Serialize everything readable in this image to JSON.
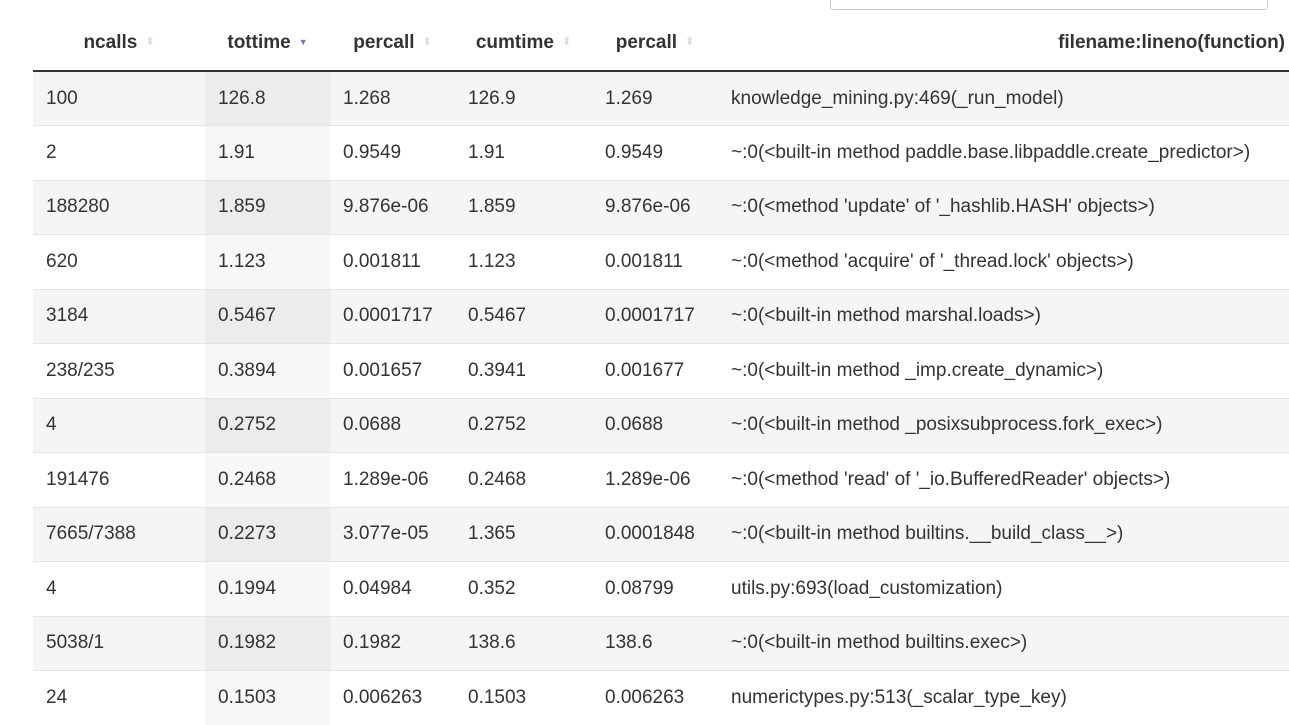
{
  "search": {
    "value": ""
  },
  "columns": [
    "ncalls",
    "tottime",
    "percall",
    "cumtime",
    "percall",
    "filename:lineno(function)"
  ],
  "sorted_column": "tottime",
  "sort_direction": "descending",
  "accent_color": "#6b73c9",
  "rows": [
    [
      "100",
      "126.8",
      "1.268",
      "126.9",
      "1.269",
      "knowledge_mining.py:469(_run_model)"
    ],
    [
      "2",
      "1.91",
      "0.9549",
      "1.91",
      "0.9549",
      "~:0(<built-in method paddle.base.libpaddle.create_predictor>)"
    ],
    [
      "188280",
      "1.859",
      "9.876e-06",
      "1.859",
      "9.876e-06",
      "~:0(<method 'update' of '_hashlib.HASH' objects>)"
    ],
    [
      "620",
      "1.123",
      "0.001811",
      "1.123",
      "0.001811",
      "~:0(<method 'acquire' of '_thread.lock' objects>)"
    ],
    [
      "3184",
      "0.5467",
      "0.0001717",
      "0.5467",
      "0.0001717",
      "~:0(<built-in method marshal.loads>)"
    ],
    [
      "238/235",
      "0.3894",
      "0.001657",
      "0.3941",
      "0.001677",
      "~:0(<built-in method _imp.create_dynamic>)"
    ],
    [
      "4",
      "0.2752",
      "0.0688",
      "0.2752",
      "0.0688",
      "~:0(<built-in method _posixsubprocess.fork_exec>)"
    ],
    [
      "191476",
      "0.2468",
      "1.289e-06",
      "0.2468",
      "1.289e-06",
      "~:0(<method 'read' of '_io.BufferedReader' objects>)"
    ],
    [
      "7665/7388",
      "0.2273",
      "3.077e-05",
      "1.365",
      "0.0001848",
      "~:0(<built-in method builtins.__build_class__>)"
    ],
    [
      "4",
      "0.1994",
      "0.04984",
      "0.352",
      "0.08799",
      "utils.py:693(load_customization)"
    ],
    [
      "5038/1",
      "0.1982",
      "0.1982",
      "138.6",
      "138.6",
      "~:0(<built-in method builtins.exec>)"
    ],
    [
      "24",
      "0.1503",
      "0.006263",
      "0.1503",
      "0.006263",
      "numerictypes.py:513(_scalar_type_key)"
    ]
  ]
}
